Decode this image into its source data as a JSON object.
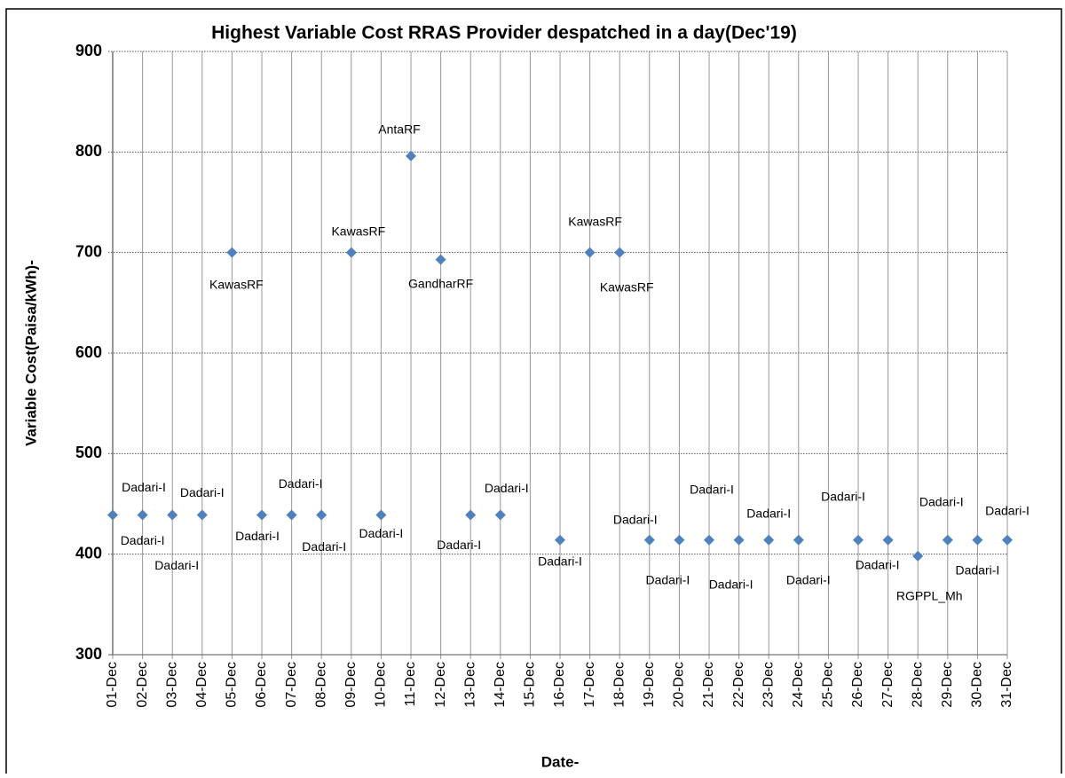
{
  "chart_data": {
    "type": "scatter",
    "title": "Highest Variable Cost RRAS Provider despatched in a day(Dec'19)",
    "x_label": "Date-",
    "y_label": "Variable Cost(Paisa/kWh)-",
    "categories": [
      "01-Dec",
      "02-Dec",
      "03-Dec",
      "04-Dec",
      "05-Dec",
      "06-Dec",
      "07-Dec",
      "08-Dec",
      "09-Dec",
      "10-Dec",
      "11-Dec",
      "12-Dec",
      "13-Dec",
      "14-Dec",
      "15-Dec",
      "16-Dec",
      "17-Dec",
      "18-Dec",
      "19-Dec",
      "20-Dec",
      "21-Dec",
      "22-Dec",
      "23-Dec",
      "24-Dec",
      "25-Dec",
      "26-Dec",
      "27-Dec",
      "28-Dec",
      "29-Dec",
      "30-Dec",
      "31-Dec"
    ],
    "values": [
      439,
      439,
      439,
      439,
      700,
      439,
      439,
      439,
      700,
      439,
      796,
      693,
      439,
      439,
      null,
      414,
      700,
      700,
      414,
      414,
      414,
      414,
      414,
      414,
      null,
      414,
      414,
      398,
      414,
      414,
      414
    ],
    "point_labels": [
      "Dadari-I",
      "Dadari-I",
      "Dadari-I",
      "Dadari-I",
      "KawasRF",
      "Dadari-I",
      "Dadari-I",
      "Dadari-I",
      "KawasRF",
      "Dadari-I",
      "AntaRF",
      "GandharRF",
      "Dadari-I",
      "Dadari-I",
      null,
      "Dadari-I",
      "KawasRF",
      "KawasRF",
      "Dadari-I",
      "Dadari-I",
      "Dadari-I",
      "Dadari-I",
      "Dadari-I",
      "Dadari-I",
      null,
      "Dadari-I",
      "Dadari-I",
      "RGPPL_Mh",
      "Dadari-I",
      "Dadari-I",
      "Dadari-I"
    ],
    "color": "#4f81bd",
    "ylim": [
      300,
      900
    ],
    "yticks": [
      300,
      400,
      500,
      600,
      700,
      800,
      900
    ],
    "grid": true
  }
}
